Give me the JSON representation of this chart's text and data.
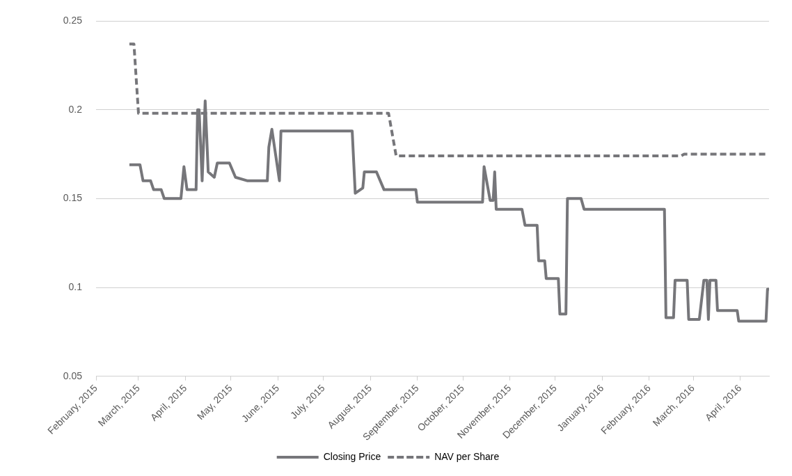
{
  "chart_data": {
    "type": "line",
    "xlim": [
      "2015-02-01",
      "2016-04-20"
    ],
    "xticks": [
      {
        "value": "2015-02-01",
        "label": "February, 2015"
      },
      {
        "value": "2015-03-01",
        "label": "March, 2015"
      },
      {
        "value": "2015-04-01",
        "label": "April, 2015"
      },
      {
        "value": "2015-05-01",
        "label": "May, 2015"
      },
      {
        "value": "2015-06-01",
        "label": "June, 2015"
      },
      {
        "value": "2015-07-01",
        "label": "July, 2015"
      },
      {
        "value": "2015-08-01",
        "label": "August, 2015"
      },
      {
        "value": "2015-09-01",
        "label": "September, 2015"
      },
      {
        "value": "2015-10-01",
        "label": "October, 2015"
      },
      {
        "value": "2015-11-01",
        "label": "November, 2015"
      },
      {
        "value": "2015-12-01",
        "label": "December, 2015"
      },
      {
        "value": "2016-01-01",
        "label": "January, 2016"
      },
      {
        "value": "2016-02-01",
        "label": "February, 2016"
      },
      {
        "value": "2016-03-01",
        "label": "March, 2016"
      },
      {
        "value": "2016-04-01",
        "label": "April, 2016"
      }
    ],
    "ylim": [
      0.05,
      0.25
    ],
    "yticks": [
      0.05,
      0.1,
      0.15,
      0.2,
      0.25
    ],
    "grid": "y",
    "legend": "bottom",
    "marker": "none",
    "series": [
      {
        "name": "Closing Price",
        "color": "#76767a",
        "line_style": "solid",
        "x": [
          "2015-02-23",
          "2015-03-02",
          "2015-03-04",
          "2015-03-09",
          "2015-03-11",
          "2015-03-16",
          "2015-03-18",
          "2015-03-29",
          "2015-03-31",
          "2015-04-02",
          "2015-04-08",
          "2015-04-09",
          "2015-04-10",
          "2015-04-12",
          "2015-04-14",
          "2015-04-16",
          "2015-04-20",
          "2015-04-22",
          "2015-04-30",
          "2015-05-04",
          "2015-05-12",
          "2015-05-25",
          "2015-05-26",
          "2015-05-28",
          "2015-06-02",
          "2015-06-03",
          "2015-07-20",
          "2015-07-22",
          "2015-07-27",
          "2015-07-28",
          "2015-08-05",
          "2015-08-10",
          "2015-08-31",
          "2015-09-01",
          "2015-10-14",
          "2015-10-15",
          "2015-10-19",
          "2015-10-21",
          "2015-10-22",
          "2015-10-23",
          "2015-11-09",
          "2015-11-11",
          "2015-11-19",
          "2015-11-20",
          "2015-11-24",
          "2015-11-25",
          "2015-12-03",
          "2015-12-04",
          "2015-12-08",
          "2015-12-09",
          "2015-12-18",
          "2015-12-20",
          "2016-02-11",
          "2016-02-12",
          "2016-02-17",
          "2016-02-18",
          "2016-02-26",
          "2016-02-27",
          "2016-03-05",
          "2016-03-08",
          "2016-03-10",
          "2016-03-11",
          "2016-03-12",
          "2016-03-16",
          "2016-03-17",
          "2016-03-30",
          "2016-03-31",
          "2016-04-18",
          "2016-04-19",
          "2016-04-20"
        ],
        "values": [
          0.169,
          0.169,
          0.16,
          0.16,
          0.155,
          0.155,
          0.15,
          0.15,
          0.168,
          0.155,
          0.155,
          0.2,
          0.2,
          0.16,
          0.205,
          0.165,
          0.162,
          0.17,
          0.17,
          0.162,
          0.16,
          0.16,
          0.179,
          0.189,
          0.16,
          0.188,
          0.188,
          0.153,
          0.156,
          0.165,
          0.165,
          0.155,
          0.155,
          0.148,
          0.148,
          0.168,
          0.149,
          0.149,
          0.165,
          0.144,
          0.144,
          0.135,
          0.135,
          0.115,
          0.115,
          0.105,
          0.105,
          0.085,
          0.085,
          0.15,
          0.15,
          0.144,
          0.144,
          0.083,
          0.083,
          0.104,
          0.104,
          0.082,
          0.082,
          0.104,
          0.104,
          0.082,
          0.104,
          0.104,
          0.087,
          0.087,
          0.081,
          0.081,
          0.099,
          0.099
        ]
      },
      {
        "name": "NAV per Share",
        "color": "#76767a",
        "line_style": "dashed",
        "x": [
          "2015-02-23",
          "2015-02-26",
          "2015-03-01",
          "2015-08-13",
          "2015-08-18",
          "2016-02-22",
          "2016-02-24",
          "2016-04-19"
        ],
        "values": [
          0.237,
          0.237,
          0.198,
          0.198,
          0.174,
          0.174,
          0.175,
          0.175
        ]
      }
    ]
  }
}
